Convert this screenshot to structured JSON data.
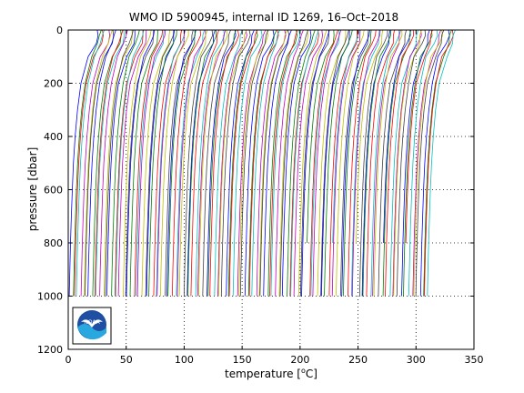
{
  "chart_data": {
    "type": "line",
    "title": "WMO ID 5900945, internal ID 1269, 16–Oct–2018",
    "xlabel_prefix": "temperature [",
    "xlabel_unit_superscript": "o",
    "xlabel_suffix": "C]",
    "ylabel": "pressure [dbar]",
    "xlim": [
      0,
      350
    ],
    "ylim": [
      1200,
      0
    ],
    "y_reversed": true,
    "grid": "dotted",
    "xticks": [
      0,
      50,
      100,
      150,
      200,
      250,
      300,
      350
    ],
    "yticks": [
      0,
      200,
      400,
      600,
      800,
      1000,
      1200
    ],
    "xtick_labels": [
      "0",
      "50",
      "100",
      "150",
      "200",
      "250",
      "300",
      "350"
    ],
    "ytick_labels": [
      "0",
      "200",
      "400",
      "600",
      "800",
      "1000",
      "1200"
    ],
    "description_of_series": "Waterfall of offset temperature profiles; each successive profile shifted ~2.5 units in x",
    "profile_count": 130,
    "profile_x_start_at_surface": [
      25,
      338
    ],
    "profile_x_shift_per_profile": 2.4,
    "profile_depth_max": 1000,
    "profile_shape": {
      "pressure": [
        0,
        20,
        50,
        100,
        200,
        300,
        400,
        500,
        600,
        700,
        800,
        900,
        1000
      ],
      "temperature_offset_from_surface": [
        0,
        -0.5,
        -2,
        -8,
        -14,
        -17,
        -19,
        -20.5,
        -21.5,
        -22.3,
        -23,
        -23.6,
        -24.1
      ]
    },
    "line_colors": [
      "#0000ff",
      "#008000",
      "#ff0000",
      "#00bfbf",
      "#bf00bf",
      "#bfbf00",
      "#404040"
    ],
    "logo": "NOAA"
  }
}
